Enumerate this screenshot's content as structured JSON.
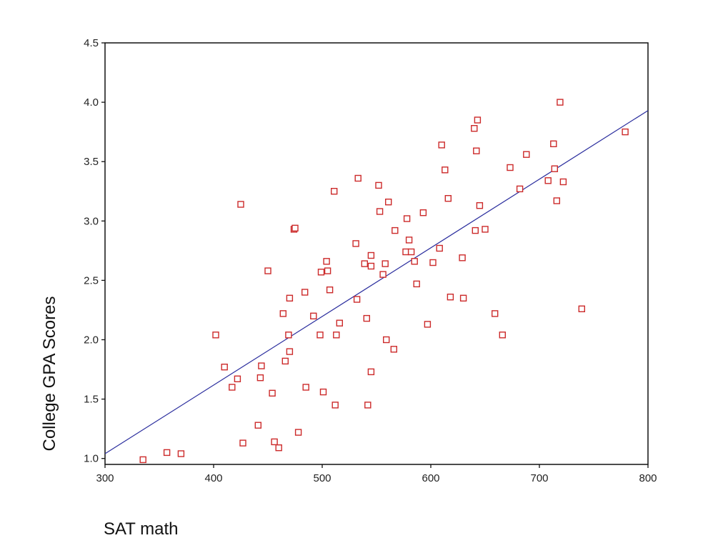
{
  "chart_data": {
    "type": "scatter",
    "title": "",
    "xlabel": "SAT math",
    "ylabel": "College GPA Scores",
    "xlim": [
      300,
      800
    ],
    "ylim": [
      0.95,
      4.5
    ],
    "xticks": [
      300,
      400,
      500,
      600,
      700,
      800
    ],
    "xtick_labels": [
      "300",
      "400",
      "500",
      "600",
      "700",
      "800"
    ],
    "yticks": [
      1.0,
      1.5,
      2.0,
      2.5,
      3.0,
      3.5,
      4.0,
      4.5
    ],
    "ytick_labels": [
      "1.0",
      "1.5",
      "2.0",
      "2.5",
      "3.0",
      "3.5",
      "4.0",
      "4.5"
    ],
    "grid": false,
    "legend": "none",
    "marker": "open-square",
    "series": [
      {
        "points": [
          [
            335,
            0.99
          ],
          [
            357,
            1.05
          ],
          [
            370,
            1.04
          ],
          [
            402,
            2.04
          ],
          [
            410,
            1.77
          ],
          [
            417,
            1.6
          ],
          [
            422,
            1.67
          ],
          [
            425,
            3.14
          ],
          [
            427,
            1.13
          ],
          [
            441,
            1.28
          ],
          [
            443,
            1.68
          ],
          [
            444,
            1.78
          ],
          [
            450,
            2.58
          ],
          [
            454,
            1.55
          ],
          [
            456,
            1.14
          ],
          [
            460,
            1.09
          ],
          [
            464,
            2.22
          ],
          [
            466,
            1.82
          ],
          [
            469,
            2.04
          ],
          [
            470,
            1.9
          ],
          [
            470,
            2.35
          ],
          [
            474,
            2.93
          ],
          [
            475,
            2.94
          ],
          [
            478,
            1.22
          ],
          [
            484,
            2.4
          ],
          [
            485,
            1.6
          ],
          [
            492,
            2.2
          ],
          [
            498,
            2.04
          ],
          [
            499,
            2.57
          ],
          [
            501,
            1.56
          ],
          [
            504,
            2.66
          ],
          [
            505,
            2.58
          ],
          [
            507,
            2.42
          ],
          [
            511,
            3.25
          ],
          [
            512,
            1.45
          ],
          [
            513,
            2.04
          ],
          [
            516,
            2.14
          ],
          [
            531,
            2.81
          ],
          [
            532,
            2.34
          ],
          [
            533,
            3.36
          ],
          [
            539,
            2.64
          ],
          [
            541,
            2.18
          ],
          [
            542,
            1.45
          ],
          [
            545,
            1.73
          ],
          [
            545,
            2.62
          ],
          [
            545,
            2.71
          ],
          [
            552,
            3.3
          ],
          [
            553,
            3.08
          ],
          [
            556,
            2.55
          ],
          [
            558,
            2.64
          ],
          [
            559,
            2.0
          ],
          [
            561,
            3.16
          ],
          [
            566,
            1.92
          ],
          [
            567,
            2.92
          ],
          [
            577,
            2.74
          ],
          [
            578,
            3.02
          ],
          [
            580,
            2.84
          ],
          [
            582,
            2.74
          ],
          [
            585,
            2.66
          ],
          [
            587,
            2.47
          ],
          [
            593,
            3.07
          ],
          [
            597,
            2.13
          ],
          [
            602,
            2.65
          ],
          [
            608,
            2.77
          ],
          [
            610,
            3.64
          ],
          [
            613,
            3.43
          ],
          [
            616,
            3.19
          ],
          [
            618,
            2.36
          ],
          [
            629,
            2.69
          ],
          [
            630,
            2.35
          ],
          [
            640,
            3.78
          ],
          [
            641,
            2.92
          ],
          [
            642,
            3.59
          ],
          [
            643,
            3.85
          ],
          [
            645,
            3.13
          ],
          [
            650,
            2.93
          ],
          [
            659,
            2.22
          ],
          [
            666,
            2.04
          ],
          [
            673,
            3.45
          ],
          [
            682,
            3.27
          ],
          [
            688,
            3.56
          ],
          [
            708,
            3.34
          ],
          [
            713,
            3.65
          ],
          [
            714,
            3.44
          ],
          [
            716,
            3.17
          ],
          [
            719,
            4.0
          ],
          [
            722,
            3.33
          ],
          [
            739,
            2.26
          ],
          [
            779,
            3.75
          ]
        ]
      }
    ],
    "regression_line": {
      "x": [
        300,
        800
      ],
      "y": [
        1.04,
        3.93
      ]
    },
    "colors": {
      "points": "#cc2a2a",
      "line": "#2b2e9e",
      "axis": "#111111"
    }
  }
}
